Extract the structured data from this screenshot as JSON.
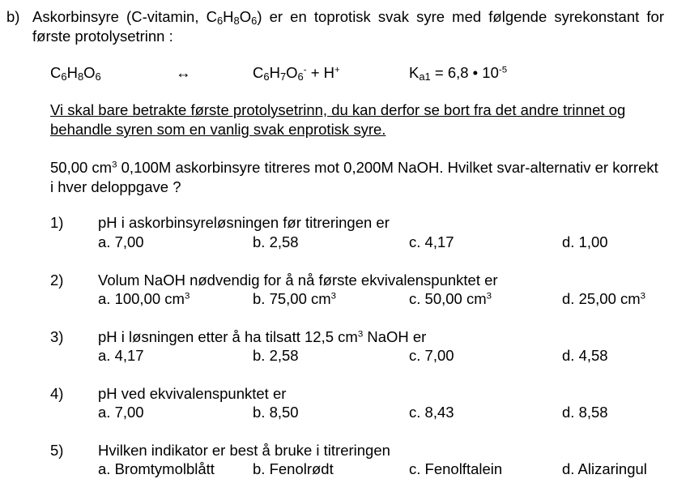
{
  "intro": {
    "label": "b)",
    "text_before_formula": "Askorbinsyre (C-vitamin, C",
    "sub1": "6",
    "h": "H",
    "sub2": "8",
    "o": "O",
    "sub3": "6",
    "text_after_formula": ") er en toprotisk svak syre med følgende syrekonstant for første protolysetrinn :"
  },
  "reaction": {
    "reactant": {
      "c": "C",
      "c_n": "6",
      "h": "H",
      "h_n": "8",
      "o": "O",
      "o_n": "6"
    },
    "arrow": "↔",
    "product": {
      "c": "C",
      "c_n": "6",
      "h": "H",
      "h_n": "7",
      "o": "O",
      "o_n": "6",
      "charge": "-",
      "plus_h": " + H",
      "h_charge": "+"
    },
    "ka": {
      "k": "K",
      "sub": "a1",
      "rest": " = 6,8 • 10",
      "exp": "-5"
    }
  },
  "note": "Vi skal bare betrakte første protolysetrinn, du kan derfor se bort fra det andre trinnet og behandle syren som en vanlig svak enprotisk syre.",
  "task": {
    "part1": "50,00 cm",
    "sup": "3",
    "part2": " 0,100M askorbinsyre titreres mot 0,200M NaOH. Hvilket svar-alternativ er korrekt i hver deloppgave ?"
  },
  "questions": [
    {
      "num": "1)",
      "text": "pH i askorbinsyreløsningen før titreringen er",
      "options": [
        "a. 7,00",
        "b. 2,58",
        "c. 4,17",
        "d. 1,00"
      ]
    },
    {
      "num": "2)",
      "text": "Volum NaOH nødvendig for å nå første ekvivalenspunktet er",
      "options": [
        "a. 100,00 cm",
        "b. 75,00 cm",
        "c. 50,00 cm",
        "d. 25,00 cm"
      ],
      "opt_sup": "3"
    },
    {
      "num": "3)",
      "text_a": "pH i løsningen etter å ha tilsatt 12,5 cm",
      "text_sup": "3",
      "text_b": " NaOH er",
      "options": [
        "a. 4,17",
        "b. 2,58",
        "c. 7,00",
        "d. 4,58"
      ]
    },
    {
      "num": "4)",
      "text": "pH ved ekvivalenspunktet er",
      "options": [
        "a. 7,00",
        "b. 8,50",
        "c. 8,43",
        "d. 8,58"
      ]
    },
    {
      "num": "5)",
      "text": "Hvilken indikator er best å bruke i titreringen",
      "options": [
        "a. Bromtymolblått",
        "b. Fenolrødt",
        "c. Fenolftalein",
        "d. Alizaringul"
      ]
    }
  ]
}
